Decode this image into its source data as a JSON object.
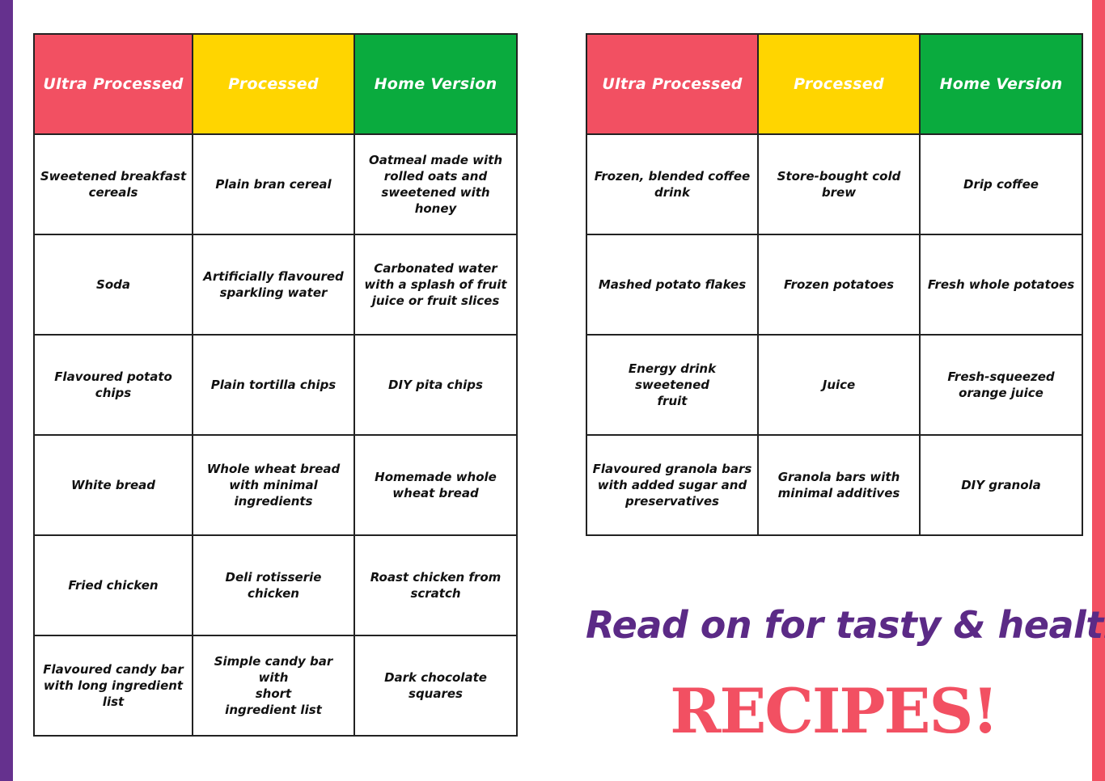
{
  "colors": {
    "left_bar": "#65318e",
    "right_bar": "#f25062",
    "ultra_header": "#f25062",
    "processed_header": "#ffd500",
    "home_header": "#0aab3e",
    "tagline": "#5b2a86",
    "recipes": "#f25062"
  },
  "headers": {
    "ultra": "Ultra Processed",
    "processed": "Processed",
    "home": "Home Version"
  },
  "left_table": {
    "rows": [
      {
        "ultra": "Sweetened breakfast\ncereals",
        "processed": "Plain bran cereal",
        "home": "Oatmeal made with\nrolled oats and\nsweetened with honey"
      },
      {
        "ultra": "Soda",
        "processed": "Artificially flavoured\nsparkling water",
        "home": "Carbonated water\nwith a splash of fruit\njuice or fruit slices"
      },
      {
        "ultra": "Flavoured potato\nchips",
        "processed": "Plain tortilla chips",
        "home": "DIY pita chips"
      },
      {
        "ultra": "White bread",
        "processed": "Whole wheat bread\nwith minimal\ningredients",
        "home": "Homemade whole\nwheat bread"
      },
      {
        "ultra": "Fried chicken",
        "processed": "Deli rotisserie chicken",
        "home": "Roast chicken from\nscratch"
      },
      {
        "ultra": "Flavoured candy bar\nwith long ingredient\nlist",
        "processed": "Simple candy bar with\nshort\ningredient list",
        "home": "Dark chocolate\nsquares"
      }
    ]
  },
  "right_table": {
    "rows": [
      {
        "ultra": "Frozen, blended coffee\ndrink",
        "processed": "Store-bought cold\nbrew",
        "home": "Drip coffee"
      },
      {
        "ultra": "Mashed potato flakes",
        "processed": "Frozen potatoes",
        "home": "Fresh whole potatoes"
      },
      {
        "ultra": "Energy drink sweetened\nfruit",
        "processed": "Juice",
        "home": "Fresh-squeezed\norange juice"
      },
      {
        "ultra": "Flavoured granola bars\nwith added sugar and\npreservatives",
        "processed": "Granola bars with\nminimal additives",
        "home": "DIY granola"
      }
    ]
  },
  "tagline": "Read on for tasty & healthy",
  "recipes_word": "RECIPES!"
}
